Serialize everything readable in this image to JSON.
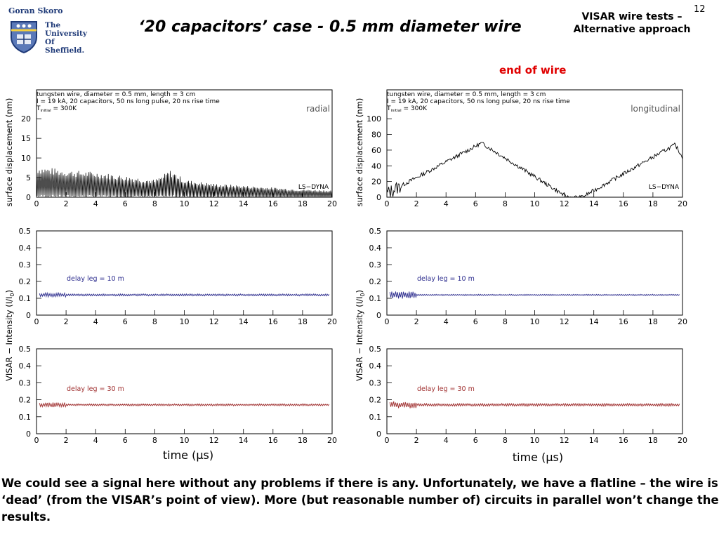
{
  "header": {
    "author": "Goran Skoro",
    "university_lines": [
      "The",
      "University",
      "Of",
      "Sheffield."
    ],
    "title": "‘20 capacitors’ case  - 0.5 mm diameter wire",
    "topic_line1": "VISAR wire tests –",
    "topic_line2": "Alternative approach",
    "page_number": "12"
  },
  "annotation": "end of wire",
  "caption": "We could see a signal here without any problems if there is any. Unfortunately, we have a flatline – the wire is ‘dead’ (from the VISAR’s point of view). More (but reasonable number of) circuits in parallel won’t change the results.",
  "chart_data": [
    {
      "type": "line",
      "panel": "displacement-radial",
      "annotation_lines": [
        "tungsten wire, diameter = 0.5 mm, length = 3 cm",
        "I = 19 kA, 20 capacitors, 50 ns long pulse, 20 ns rise time"
      ],
      "tinit_label": "T",
      "tinit_sub": "initial",
      "tinit_value": "= 300K",
      "corner_label": "radial",
      "code_label": "LS−DYNA",
      "ylabel": "surface displacement (nm)",
      "xlim": [
        0,
        20
      ],
      "ylim": [
        0,
        22
      ],
      "xticks": [
        0,
        2,
        4,
        6,
        8,
        10,
        12,
        14,
        16,
        18,
        20
      ],
      "yticks": [
        0,
        5,
        10,
        15,
        20
      ],
      "color": "#000000",
      "signal": "oscillating",
      "envelope_x": [
        0,
        2,
        4,
        6,
        8,
        8.5,
        9,
        9.5,
        10,
        12,
        14,
        16,
        18,
        20
      ],
      "envelope_max": [
        8,
        7,
        6.5,
        5.5,
        4.5,
        5.5,
        7,
        6,
        4.5,
        3.5,
        3,
        2.5,
        2,
        1.8
      ]
    },
    {
      "type": "line",
      "panel": "displacement-longitudinal",
      "annotation_lines": [
        "tungsten wire, diameter = 0.5 mm, length = 3 cm",
        "I = 19 kA, 20 capacitors, 50 ns long pulse, 20 ns rise time"
      ],
      "tinit_label": "T",
      "tinit_sub": "initial",
      "tinit_value": "= 300K",
      "corner_label": "longitudinal",
      "code_label": "LS−DYNA",
      "ylabel": "surface displacement (nm)",
      "xlim": [
        0,
        20
      ],
      "ylim": [
        0,
        110
      ],
      "xticks": [
        0,
        2,
        4,
        6,
        8,
        10,
        12,
        14,
        16,
        18,
        20
      ],
      "yticks": [
        0,
        20,
        40,
        60,
        80,
        100
      ],
      "color": "#000000",
      "signal": "trend",
      "x": [
        0,
        6.4,
        12.2,
        13.2,
        19.5,
        20
      ],
      "y": [
        5,
        69,
        0,
        0,
        67,
        51
      ]
    },
    {
      "type": "line",
      "panel": "visar-10m-left",
      "series_name": "delay leg = 10 m",
      "xlim": [
        0,
        20
      ],
      "ylim": [
        0,
        0.5
      ],
      "xticks": [
        0,
        2,
        4,
        6,
        8,
        10,
        12,
        14,
        16,
        18,
        20
      ],
      "yticks": [
        0,
        0.1,
        0.2,
        0.3,
        0.4,
        0.5
      ],
      "color": "#2d2d8e",
      "signal": "flat",
      "baseline": 0.12,
      "amplitude": [
        0.012,
        0.006
      ]
    },
    {
      "type": "line",
      "panel": "visar-30m-left",
      "series_name": "delay leg = 30 m",
      "xlim": [
        0,
        20
      ],
      "ylim": [
        0,
        0.5
      ],
      "xticks": [
        0,
        2,
        4,
        6,
        8,
        10,
        12,
        14,
        16,
        18,
        20
      ],
      "yticks": [
        0,
        0.1,
        0.2,
        0.3,
        0.4,
        0.5
      ],
      "color": "#a03030",
      "signal": "flat",
      "baseline": 0.17,
      "amplitude": [
        0.014,
        0.006
      ]
    },
    {
      "type": "line",
      "panel": "visar-10m-right",
      "series_name": "delay leg = 10 m",
      "xlim": [
        0,
        20
      ],
      "ylim": [
        0,
        0.5
      ],
      "xticks": [
        0,
        2,
        4,
        6,
        8,
        10,
        12,
        14,
        16,
        18,
        20
      ],
      "yticks": [
        0,
        0.1,
        0.2,
        0.3,
        0.4,
        0.5
      ],
      "color": "#2d2d8e",
      "signal": "flat",
      "baseline": 0.12,
      "amplitude": [
        0.022,
        0.004
      ]
    },
    {
      "type": "line",
      "panel": "visar-30m-right",
      "series_name": "delay leg = 30 m",
      "xlim": [
        0,
        20
      ],
      "ylim": [
        0,
        0.5
      ],
      "xticks": [
        0,
        2,
        4,
        6,
        8,
        10,
        12,
        14,
        16,
        18,
        20
      ],
      "yticks": [
        0,
        0.1,
        0.2,
        0.3,
        0.4,
        0.5
      ],
      "color": "#a03030",
      "signal": "flat",
      "baseline": 0.17,
      "amplitude": [
        0.02,
        0.008
      ]
    }
  ],
  "shared_axes": {
    "visar_ylabel": "VISAR − Intensity (I/I",
    "visar_ylabel_sub": "0",
    "visar_ylabel_end": ")",
    "xlabel_left": "time (μs)",
    "xlabel_right": "time (μs)"
  },
  "colors": {
    "university_blue": "#1f3a78",
    "annotation_red": "#e00000"
  }
}
